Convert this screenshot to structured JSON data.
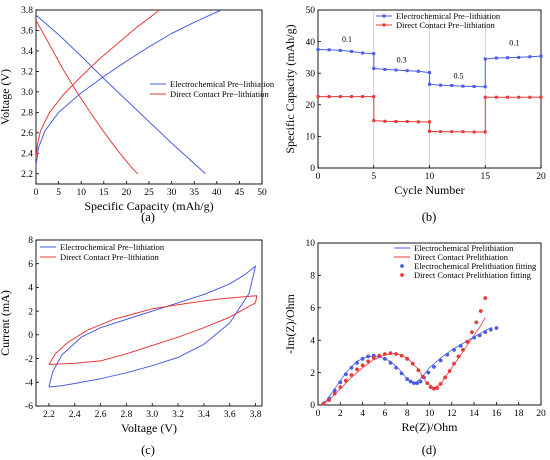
{
  "panel_labels": {
    "a": "(a)",
    "b": "(b)",
    "c": "(c)",
    "d": "(d)"
  },
  "colors": {
    "electrochemical": "#4a5de8",
    "direct": "#e83a3a",
    "divider": "#c8c8c8"
  },
  "chart_data": [
    {
      "id": "a",
      "type": "line",
      "xlabel": "Specific Capacity (mAh/g)",
      "ylabel": "Voltage (V)",
      "xlim": [
        0,
        50
      ],
      "ylim": [
        2.1,
        3.8
      ],
      "xticks": [
        0,
        5,
        10,
        15,
        20,
        25,
        30,
        35,
        40,
        45,
        50
      ],
      "yticks": [
        2.2,
        2.4,
        2.6,
        2.8,
        3.0,
        3.2,
        3.4,
        3.6,
        3.8
      ],
      "grid": false,
      "legend_position": "center-right",
      "series": [
        {
          "name": "Electrochemical Pre−lithiation",
          "color_key": "electrochemical",
          "x": [
            0,
            5,
            10,
            15,
            20,
            25,
            30,
            35,
            37.5
          ],
          "y": [
            3.75,
            3.56,
            3.35,
            3.13,
            2.92,
            2.71,
            2.5,
            2.3,
            2.2
          ]
        },
        {
          "name": "Electrochemical Pre−lithiation",
          "color_key": "electrochemical",
          "x": [
            0,
            0.5,
            2,
            5,
            10,
            15,
            20,
            25,
            30,
            35,
            41
          ],
          "y": [
            2.28,
            2.45,
            2.62,
            2.8,
            2.99,
            3.15,
            3.3,
            3.44,
            3.57,
            3.68,
            3.8
          ]
        },
        {
          "name": "Direct Contact Pre−lithiation",
          "color_key": "direct",
          "x": [
            0,
            3,
            6,
            9,
            12,
            15,
            18,
            21,
            22.5
          ],
          "y": [
            3.7,
            3.46,
            3.22,
            3.0,
            2.8,
            2.61,
            2.43,
            2.27,
            2.2
          ]
        },
        {
          "name": "Direct Contact Pre−lithiation",
          "color_key": "direct",
          "x": [
            0,
            0.3,
            1,
            3,
            6,
            10,
            14,
            18,
            22,
            25,
            27.3
          ],
          "y": [
            2.35,
            2.48,
            2.62,
            2.8,
            2.97,
            3.15,
            3.32,
            3.47,
            3.62,
            3.72,
            3.8
          ]
        }
      ],
      "legend": [
        "Electrochemical Pre−lithiation",
        "Direct Contact Pre−lithiation"
      ]
    },
    {
      "id": "b",
      "type": "line",
      "xlabel": "Cycle Number",
      "ylabel": "Specific Capacity (mAh/g)",
      "xlim": [
        0,
        20
      ],
      "ylim": [
        0,
        50
      ],
      "xticks": [
        0,
        5,
        10,
        15,
        20
      ],
      "yticks": [
        0,
        10,
        20,
        30,
        40,
        50
      ],
      "grid": false,
      "legend_position": "top-right",
      "dividers_at_x": [
        5,
        10,
        15
      ],
      "annotations": [
        {
          "text": "0.1",
          "x": 2.6,
          "y": 39.8
        },
        {
          "text": "0.3",
          "x": 7.5,
          "y": 33.4
        },
        {
          "text": "0.5",
          "x": 12.6,
          "y": 28.4
        },
        {
          "text": "0.1",
          "x": 17.6,
          "y": 38.7
        }
      ],
      "series": [
        {
          "name": "Electrochemical Pre−lithiation",
          "color_key": "electrochemical",
          "marker": "square",
          "x": [
            0,
            1,
            2,
            3,
            4,
            5,
            5,
            6,
            7,
            8,
            9,
            10,
            10,
            11,
            12,
            13,
            14,
            15,
            15,
            16,
            17,
            18,
            19,
            20
          ],
          "y": [
            37.5,
            37.4,
            37.2,
            36.9,
            36.4,
            36.2,
            31.5,
            31.2,
            31.0,
            30.8,
            30.6,
            30.2,
            26.5,
            26.2,
            26.1,
            25.9,
            25.8,
            25.7,
            34.5,
            34.8,
            34.9,
            35.0,
            35.2,
            35.4
          ]
        },
        {
          "name": "Direct Contact Pre−lithiation",
          "color_key": "direct",
          "marker": "square",
          "x": [
            0,
            1,
            2,
            3,
            4,
            5,
            5,
            6,
            7,
            8,
            9,
            10,
            10,
            11,
            12,
            13,
            14,
            15,
            15,
            16,
            17,
            18,
            19,
            20
          ],
          "y": [
            22.6,
            22.6,
            22.6,
            22.6,
            22.6,
            22.6,
            15.0,
            14.8,
            14.7,
            14.7,
            14.6,
            14.6,
            11.6,
            11.5,
            11.5,
            11.5,
            11.4,
            11.4,
            22.4,
            22.4,
            22.4,
            22.4,
            22.4,
            22.4
          ]
        }
      ],
      "legend": [
        "Electrochemical Pre−lithiation",
        "Direct Contact Pre−lithiation"
      ]
    },
    {
      "id": "c",
      "type": "line",
      "xlabel": "Voltage (V)",
      "ylabel": "Current (mA)",
      "xlim": [
        2.1,
        3.85
      ],
      "ylim": [
        -6,
        8
      ],
      "xticks": [
        2.2,
        2.4,
        2.6,
        2.8,
        3.0,
        3.2,
        3.4,
        3.6,
        3.8
      ],
      "yticks": [
        -6,
        -4,
        -2,
        0,
        2,
        4,
        6,
        8
      ],
      "grid": false,
      "legend_position": "top-left",
      "series": [
        {
          "name": "Electrochemical Pre−lithiation",
          "color_key": "electrochemical",
          "x": [
            2.2,
            2.23,
            2.3,
            2.45,
            2.6,
            2.8,
            3.0,
            3.2,
            3.4,
            3.6,
            3.72,
            3.8,
            3.75,
            3.6,
            3.4,
            3.2,
            3.0,
            2.8,
            2.6,
            2.4,
            2.3,
            2.2
          ],
          "y": [
            -4.4,
            -3.1,
            -1.7,
            -0.2,
            0.6,
            1.3,
            2.0,
            2.7,
            3.4,
            4.3,
            5.1,
            5.8,
            3.5,
            1.0,
            -0.8,
            -1.9,
            -2.6,
            -3.2,
            -3.7,
            -4.1,
            -4.3,
            -4.4
          ]
        },
        {
          "name": "Direct Contact Pre−lithiation",
          "color_key": "direct",
          "x": [
            2.2,
            2.4,
            2.6,
            2.8,
            3.0,
            3.2,
            3.4,
            3.6,
            3.8,
            3.81,
            3.7,
            3.5,
            3.3,
            3.0,
            2.7,
            2.5,
            2.35,
            2.25,
            2.2
          ],
          "y": [
            -2.5,
            -2.4,
            -2.2,
            -1.6,
            -0.9,
            -0.2,
            0.6,
            1.5,
            2.7,
            3.3,
            3.2,
            3.0,
            2.7,
            2.2,
            1.3,
            0.4,
            -0.6,
            -1.6,
            -2.5
          ]
        }
      ],
      "legend": [
        "Electrochemical Pre−lithiation",
        "Direct Contact Pre−lithiation"
      ]
    },
    {
      "id": "d",
      "type": "scatter",
      "xlabel": "Re(Z)/Ohm",
      "ylabel": "-Im(Z)/Ohm",
      "xlim": [
        0,
        20
      ],
      "ylim": [
        0,
        10
      ],
      "xticks": [
        0,
        2,
        4,
        6,
        8,
        10,
        12,
        14,
        16,
        18,
        20
      ],
      "yticks": [
        0,
        2,
        4,
        6,
        8,
        10
      ],
      "grid": false,
      "legend_position": "top-right",
      "series": [
        {
          "name": "Electrochemical Prelithiation",
          "color_key": "electrochemical",
          "style": "line",
          "x": [
            0.4,
            0.8,
            1.5,
            2.5,
            3.5,
            4.5,
            5.5,
            6.5,
            7.3,
            8.0,
            8.7,
            9.3,
            10.0,
            11.0,
            12.0,
            13.0,
            14.0,
            15.0,
            15.6
          ],
          "y": [
            0.05,
            0.3,
            1.0,
            2.0,
            2.7,
            3.0,
            3.0,
            2.7,
            2.2,
            1.6,
            1.35,
            1.7,
            2.3,
            2.9,
            3.4,
            3.8,
            4.2,
            4.6,
            4.8
          ]
        },
        {
          "name": "Direct Contact Prelithiation",
          "color_key": "direct",
          "style": "line",
          "x": [
            0.4,
            1.0,
            2.0,
            3.0,
            4.0,
            5.0,
            6.0,
            7.0,
            8.0,
            9.0,
            9.7,
            10.4,
            11.0,
            11.7,
            12.5,
            13.3,
            14.0,
            14.6,
            15.0
          ],
          "y": [
            0.05,
            0.3,
            1.0,
            1.7,
            2.3,
            2.8,
            3.1,
            3.2,
            2.9,
            2.2,
            1.4,
            1.05,
            1.3,
            2.0,
            2.8,
            3.6,
            4.3,
            4.9,
            5.4
          ]
        },
        {
          "name": "Electrochemical Prelithiation fitting",
          "color_key": "electrochemical",
          "style": "marker",
          "x": [
            0.5,
            1.0,
            1.5,
            2.0,
            2.5,
            3.0,
            3.5,
            4.0,
            4.5,
            5.0,
            5.5,
            6.0,
            6.5,
            7.0,
            7.5,
            8.0,
            8.3,
            8.6,
            8.9,
            9.2,
            9.5,
            9.9,
            10.4,
            11.0,
            11.6,
            12.2,
            12.8,
            13.4,
            14.0,
            14.5,
            15.0,
            15.5,
            16.0
          ],
          "y": [
            0.1,
            0.4,
            0.9,
            1.4,
            1.9,
            2.3,
            2.6,
            2.85,
            3.0,
            3.05,
            3.0,
            2.85,
            2.6,
            2.3,
            1.95,
            1.6,
            1.45,
            1.35,
            1.35,
            1.45,
            1.7,
            2.0,
            2.35,
            2.75,
            3.1,
            3.4,
            3.65,
            3.9,
            4.15,
            4.3,
            4.5,
            4.65,
            4.75
          ]
        },
        {
          "name": "Direct Contact Prelithiation fitting",
          "color_key": "direct",
          "style": "marker",
          "x": [
            0.5,
            1.0,
            1.5,
            2.0,
            2.5,
            3.0,
            3.5,
            4.0,
            4.5,
            5.0,
            5.5,
            6.0,
            6.5,
            7.0,
            7.5,
            8.0,
            8.5,
            9.0,
            9.4,
            9.8,
            10.1,
            10.4,
            10.7,
            11.0,
            11.4,
            11.8,
            12.2,
            12.6,
            13.0,
            13.4,
            13.8,
            14.2,
            14.6,
            15.0
          ],
          "y": [
            0.1,
            0.3,
            0.7,
            1.1,
            1.5,
            1.85,
            2.2,
            2.45,
            2.7,
            2.9,
            3.05,
            3.15,
            3.2,
            3.15,
            3.05,
            2.85,
            2.55,
            2.15,
            1.75,
            1.35,
            1.1,
            1.0,
            1.05,
            1.3,
            1.7,
            2.1,
            2.55,
            3.0,
            3.4,
            3.9,
            4.5,
            5.1,
            5.8,
            6.6
          ]
        }
      ],
      "legend": [
        "Electrochemical Prelithiation",
        "Direct Contact Prelithiation",
        "Electrochemical Prelithiation fitting",
        "Direct Contact Prelithiation fitting"
      ]
    }
  ]
}
